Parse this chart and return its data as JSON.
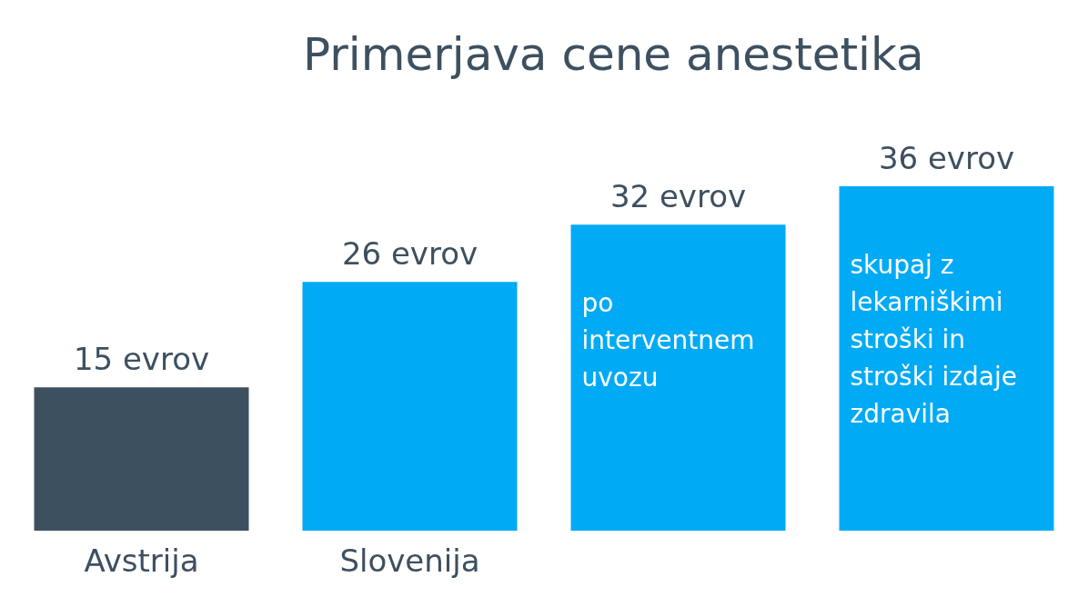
{
  "chart_data": {
    "type": "bar",
    "title": "Primerjava cene anestetika",
    "categories": [
      "Avstrija",
      "Slovenija",
      null,
      null
    ],
    "values": [
      15,
      26,
      32,
      36
    ],
    "colors": [
      "#3d5060",
      "#00aaf5",
      "#00aaf5",
      "#00aaf5"
    ],
    "value_labels": [
      "15 evrov",
      "26 evrov",
      "32 evrov",
      "36 evrov"
    ],
    "annotations": [
      {
        "text": "po interventnem uvozu",
        "y": 32
      },
      {
        "text": "skupaj z lekarniškimi stroški in stroški izdaje zdravila",
        "y": 36
      }
    ]
  }
}
